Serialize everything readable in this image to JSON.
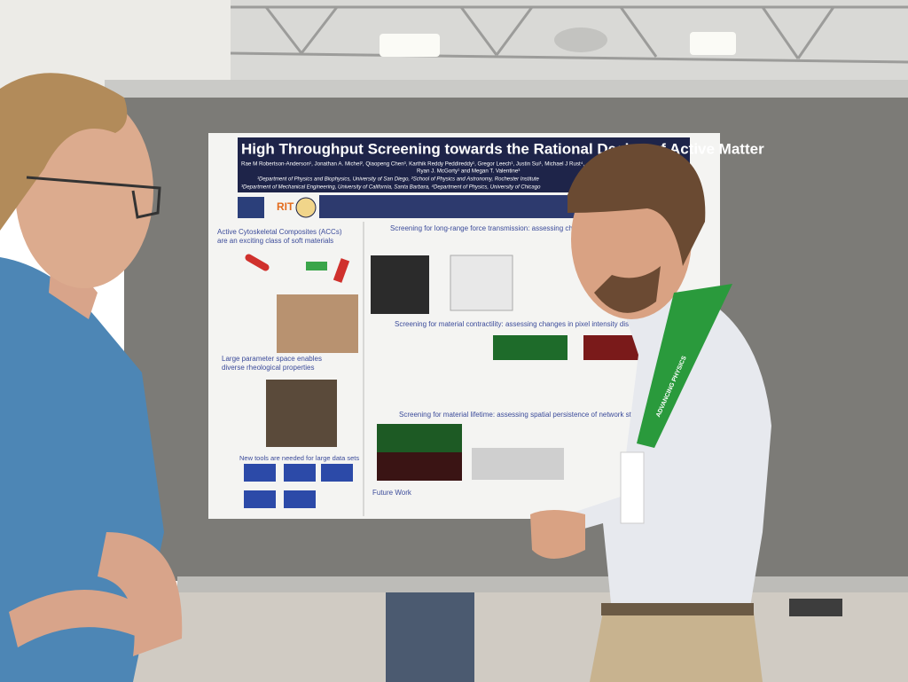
{
  "poster": {
    "title": "High Throughput Screening towards the Rational Design of Active Matter",
    "authors": "Rae M Robertson-Anderson¹, Jonathan A. Michel², Qiaopeng Chen³, Karthik Reddy Peddireddy¹, Gregor Leech¹, Justin Sui¹, Michael J Rust⁴,",
    "authors_2": "Ryan J. McGorty¹ and Megan T. Valentine³",
    "affiliations": [
      "¹Department of Physics and Biophysics, University of San Diego, ²School of Physics and Astronomy, Rochester Institute",
      "³Department of Mechanical Engineering, University of California, Santa Barbara, ⁴Department of Physics, University of Chicago"
    ],
    "logo": "RIT",
    "sections": [
      {
        "heading": "Active Cytoskeletal Composites (ACCs)",
        "heading_2": "are an exciting class of soft materials"
      },
      {
        "heading": "Screening for long-range force transmission: assessing cha"
      },
      {
        "heading": "Large parameter space enables",
        "heading_2": "diverse rheological properties"
      },
      {
        "heading": "Screening for material contractility: assessing changes in pixel intensity distrib"
      },
      {
        "heading": "New tools are needed for large data sets"
      },
      {
        "heading": "Screening for material lifetime: assessing spatial persistence of network str"
      },
      {
        "heading": "Future Work"
      }
    ]
  },
  "lanyard": "ADVANCING PHYSICS"
}
